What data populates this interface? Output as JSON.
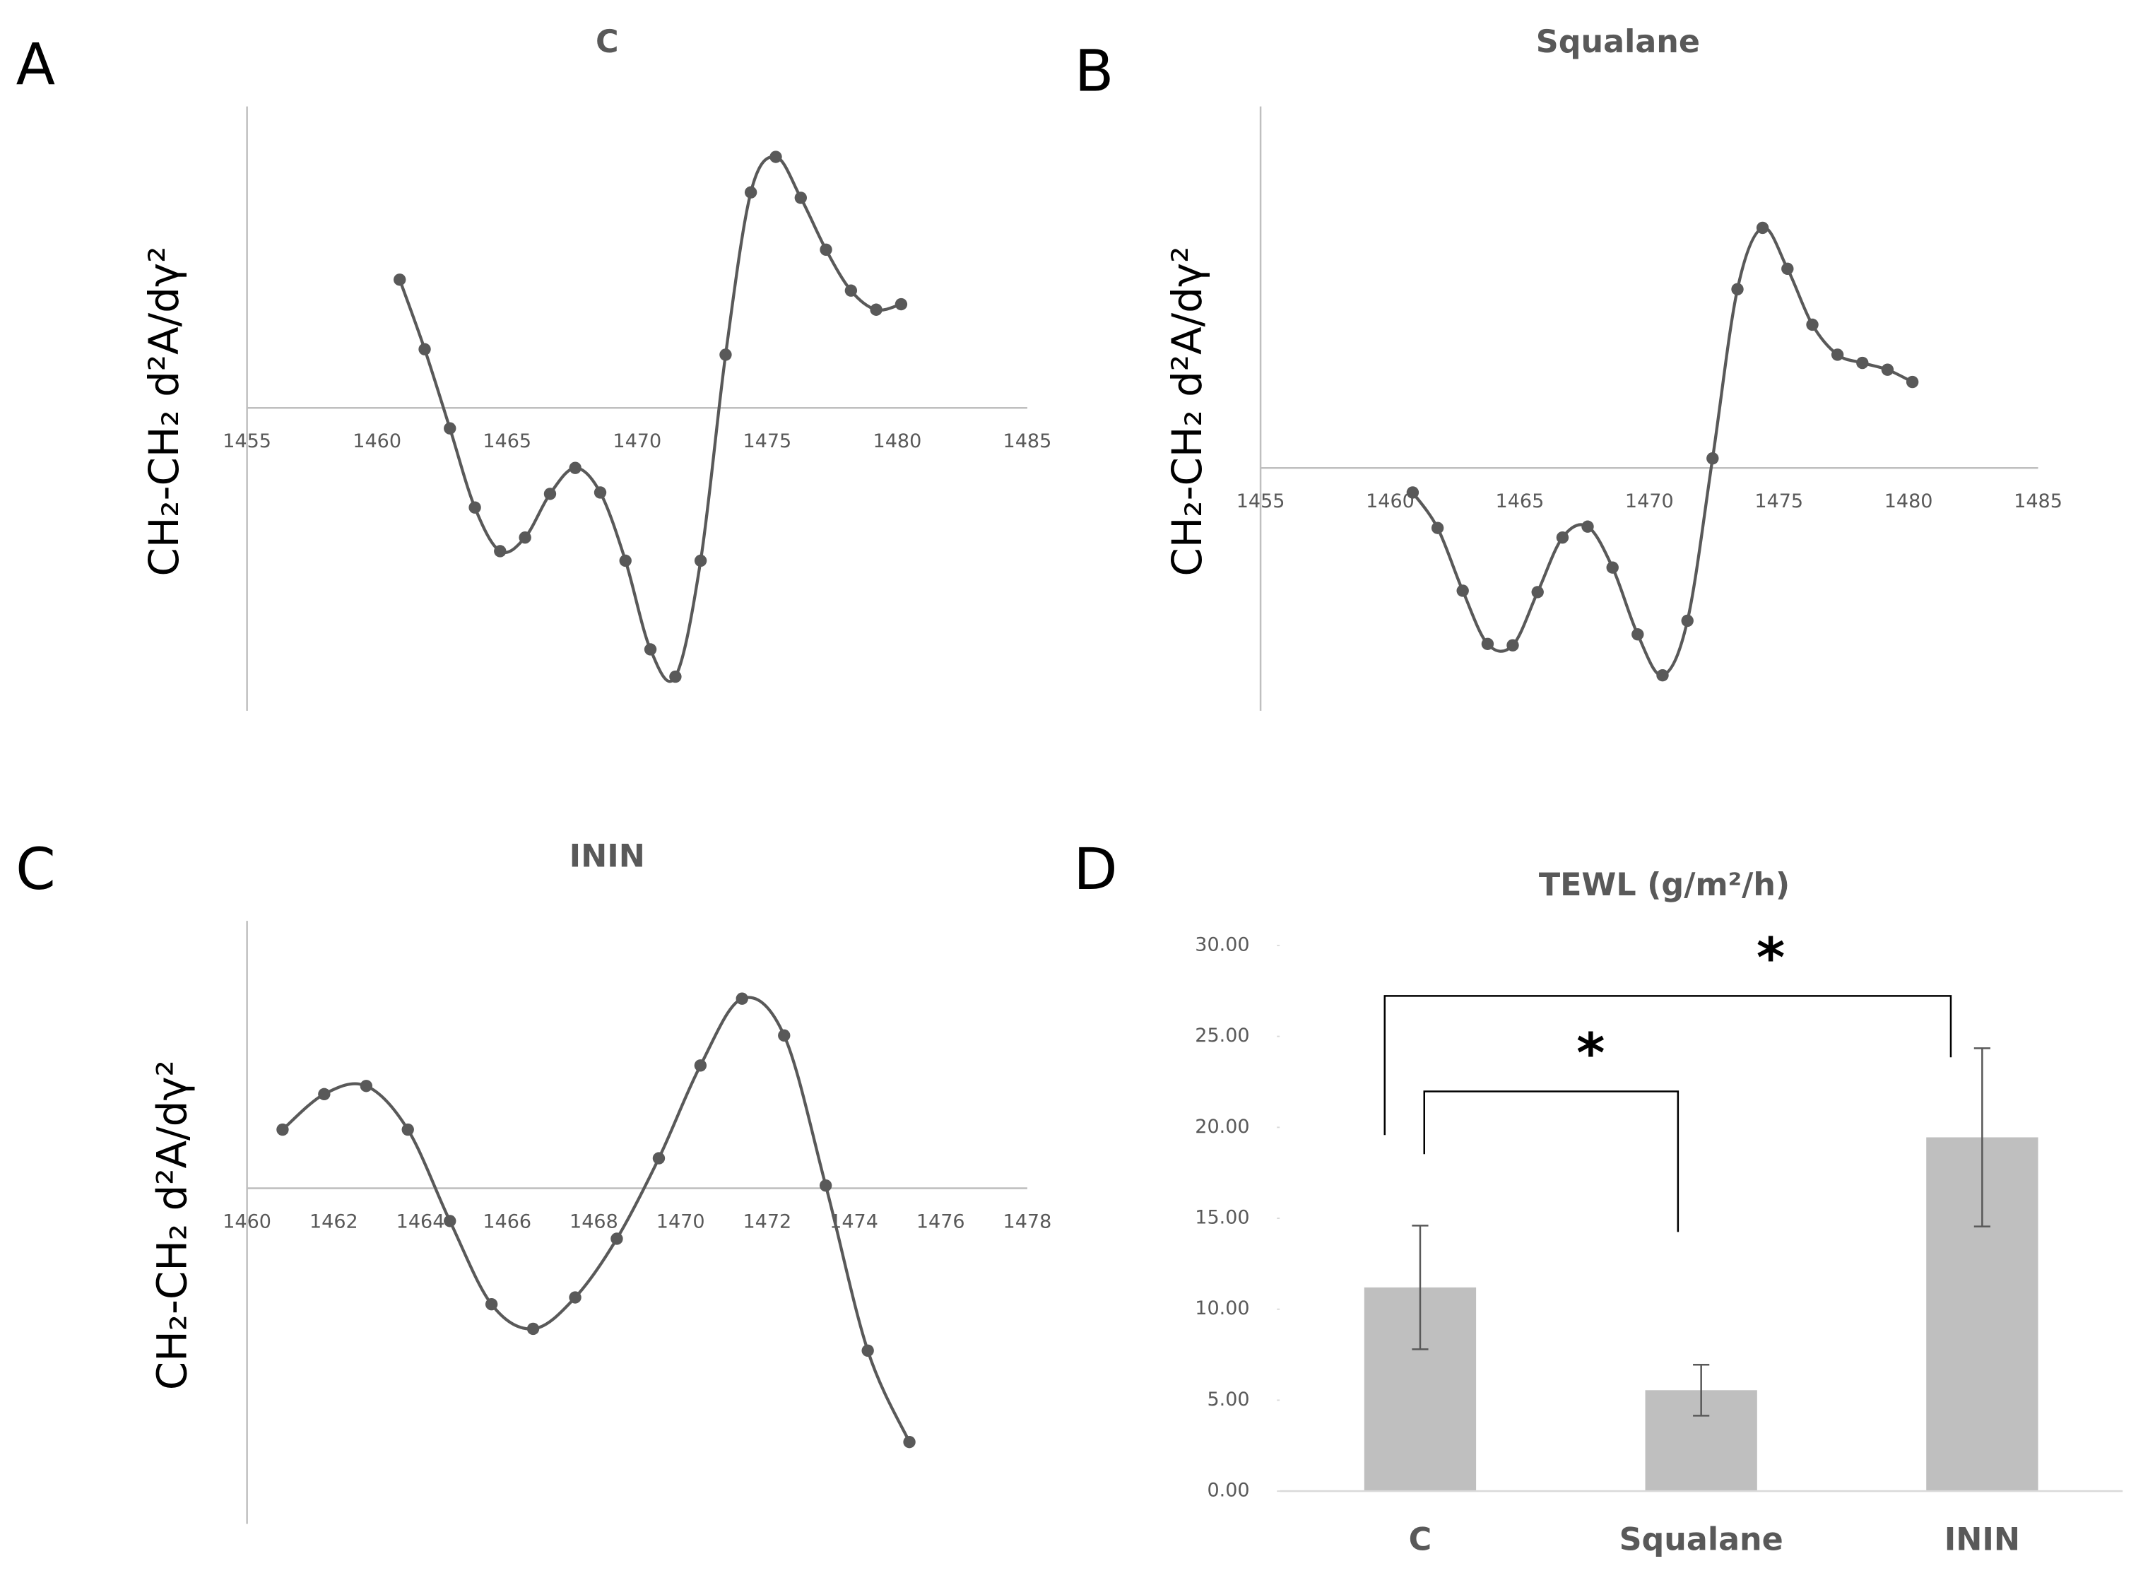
{
  "chart_data": [
    {
      "type": "line",
      "panel_label": "A",
      "title": "C",
      "y_label": "CH₂-CH₂ d²A/dγ²",
      "color": "#595959",
      "x": [
        1460.87,
        1461.83,
        1462.8,
        1463.76,
        1464.73,
        1465.69,
        1466.65,
        1467.62,
        1468.58,
        1469.55,
        1470.51,
        1471.47,
        1472.44,
        1473.4,
        1474.37,
        1475.33,
        1476.29,
        1477.26,
        1478.22,
        1479.19,
        1480.15
      ],
      "values": [
        0.94,
        0.43,
        -0.15,
        -0.73,
        -1.05,
        -0.95,
        -0.63,
        -0.44,
        -0.62,
        -1.12,
        -1.77,
        -1.97,
        -1.12,
        0.39,
        1.58,
        1.84,
        1.54,
        1.16,
        0.86,
        0.72,
        0.76
      ],
      "xlim": [
        1455,
        1485
      ],
      "xticks": [
        1455,
        1460,
        1465,
        1470,
        1475,
        1480,
        1485
      ],
      "ylim": [
        -2.22,
        2.21
      ]
    },
    {
      "type": "line",
      "panel_label": "B",
      "title": "Squalane",
      "y_label": "CH₂-CH₂ d²A/dγ²",
      "color": "#595959",
      "x": [
        1460.87,
        1461.83,
        1462.8,
        1463.76,
        1464.73,
        1465.69,
        1466.65,
        1467.62,
        1468.58,
        1469.55,
        1470.51,
        1471.47,
        1472.44,
        1473.4,
        1474.37,
        1475.33,
        1476.29,
        1477.26,
        1478.22,
        1479.19,
        1480.15
      ],
      "values": [
        -0.18,
        -0.44,
        -0.9,
        -1.29,
        -1.3,
        -0.91,
        -0.51,
        -0.43,
        -0.73,
        -1.22,
        -1.52,
        -1.12,
        0.07,
        1.31,
        1.76,
        1.46,
        1.05,
        0.83,
        0.77,
        0.72,
        0.63
      ],
      "xlim": [
        1455,
        1485
      ],
      "xticks": [
        1455,
        1460,
        1465,
        1470,
        1475,
        1480,
        1485
      ],
      "ylim": [
        -1.78,
        2.65
      ]
    },
    {
      "type": "line",
      "panel_label": "C",
      "title": "ININ",
      "y_label": "CH₂-CH₂ d²A/dγ²",
      "color": "#595959",
      "x": [
        1460.82,
        1461.78,
        1462.75,
        1463.71,
        1464.68,
        1465.64,
        1466.6,
        1467.57,
        1468.53,
        1469.5,
        1470.46,
        1471.42,
        1472.39,
        1473.35,
        1474.32,
        1475.28
      ],
      "values": [
        0.43,
        0.69,
        0.75,
        0.43,
        -0.24,
        -0.85,
        -1.03,
        -0.8,
        -0.37,
        0.22,
        0.9,
        1.39,
        1.12,
        0.02,
        -1.19,
        -1.86
      ],
      "xlim": [
        1460,
        1478
      ],
      "xticks": [
        1460,
        1462,
        1464,
        1466,
        1468,
        1470,
        1472,
        1474,
        1476,
        1478
      ],
      "ylim": [
        -2.46,
        1.96
      ]
    },
    {
      "type": "bar",
      "panel_label": "D",
      "title": "TEWL (g/m²/h)",
      "color": "#bfbfbf",
      "error_color": "#595959",
      "categories": [
        "C",
        "Squalane",
        "ININ"
      ],
      "values": [
        11.2,
        5.55,
        19.45
      ],
      "errors": [
        3.4,
        1.4,
        4.9
      ],
      "ylim": [
        0,
        30
      ],
      "yticks": [
        {
          "value": 0,
          "label": "0.00"
        },
        {
          "value": 5,
          "label": "5.00"
        },
        {
          "value": 10,
          "label": "10.00"
        },
        {
          "value": 15,
          "label": "15.00"
        },
        {
          "value": 20,
          "label": "20.00"
        },
        {
          "value": 25,
          "label": "25.00"
        },
        {
          "value": 30,
          "label": "30.00"
        }
      ],
      "annotations": [
        "*",
        "*"
      ]
    }
  ]
}
